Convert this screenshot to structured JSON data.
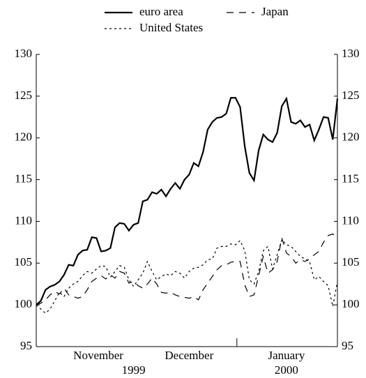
{
  "chart_data": {
    "type": "line",
    "series": [
      {
        "name": "euro area",
        "color": "#000000",
        "dash": "solid",
        "values": [
          100,
          100.5,
          101.8,
          102.2,
          102.4,
          102.8,
          103.6,
          104.8,
          104.7,
          106.0,
          106.5,
          106.6,
          108.1,
          108.0,
          106.4,
          106.5,
          106.8,
          109.3,
          109.8,
          109.7,
          108.9,
          109.6,
          109.8,
          112.4,
          112.6,
          113.5,
          113.3,
          113.8,
          113.0,
          113.9,
          114.6,
          113.9,
          115.0,
          115.6,
          117.0,
          116.6,
          118.3,
          121.0,
          121.9,
          122.4,
          122.5,
          122.9,
          124.8,
          124.8,
          123.7,
          119.0,
          115.8,
          114.9,
          118.5,
          120.4,
          119.8,
          119.5,
          120.6,
          123.8,
          124.7,
          121.9,
          121.7,
          122.1,
          121.3,
          121.6,
          119.7,
          121.0,
          122.5,
          122.4,
          119.8,
          124.7
        ]
      },
      {
        "name": "Japan",
        "color": "#000000",
        "dash": "dashed",
        "values": [
          100,
          100.2,
          100.6,
          101.2,
          101.6,
          101.3,
          102.0,
          101.2,
          101.0,
          100.8,
          101.0,
          101.8,
          102.8,
          103.2,
          103.5,
          103.1,
          103.6,
          103.2,
          104.0,
          103.8,
          102.6,
          102.8,
          102.3,
          102.0,
          102.5,
          103.2,
          102.5,
          101.5,
          101.4,
          101.5,
          101.2,
          101.0,
          100.9,
          100.8,
          101.0,
          100.6,
          101.8,
          102.6,
          103.4,
          104.2,
          104.7,
          104.8,
          105.1,
          105.2,
          105.2,
          102.4,
          101.0,
          101.2,
          103.5,
          105.8,
          103.8,
          104.2,
          105.2,
          108.0,
          106.2,
          105.8,
          105.0,
          105.4,
          105.2,
          105.5,
          106.0,
          106.4,
          107.5,
          108.3,
          108.5,
          107.8
        ]
      },
      {
        "name": "United States",
        "color": "#000000",
        "dash": "dotted",
        "values": [
          100,
          99.5,
          99.0,
          99.5,
          100.5,
          101.5,
          101.0,
          102.0,
          102.5,
          102.8,
          103.5,
          104.0,
          103.8,
          104.3,
          104.7,
          104.6,
          103.3,
          104.0,
          104.7,
          104.5,
          103.0,
          102.2,
          103.0,
          103.8,
          105.2,
          104.0,
          103.0,
          103.4,
          103.7,
          103.5,
          104.0,
          103.8,
          103.2,
          104.0,
          104.4,
          104.5,
          104.8,
          105.4,
          105.5,
          106.8,
          107.0,
          107.0,
          107.3,
          107.2,
          107.7,
          106.5,
          103.0,
          102.5,
          104.0,
          106.5,
          107.0,
          104.3,
          106.0,
          107.8,
          107.2,
          107.0,
          106.4,
          105.8,
          105.5,
          105.2,
          103.0,
          103.4,
          102.8,
          102.3,
          99.8,
          102.8
        ]
      }
    ],
    "xlim": [
      0,
      65
    ],
    "xticks": [
      {
        "value": 13.4,
        "label": "November"
      },
      {
        "value": 33,
        "label": "December"
      },
      {
        "value": 54,
        "label": "January"
      }
    ],
    "years": [
      {
        "value": 21,
        "label": "1999"
      },
      {
        "value": 54,
        "label": "2000"
      }
    ],
    "minor_xticks": [
      43.3
    ],
    "ylim": [
      95,
      130
    ],
    "yticks": [
      95,
      100,
      105,
      110,
      115,
      120,
      125,
      130
    ],
    "y2lim": [
      95,
      130
    ],
    "y2ticks": [
      95,
      100,
      105,
      110,
      115,
      120,
      125,
      130
    ],
    "grid": false
  }
}
